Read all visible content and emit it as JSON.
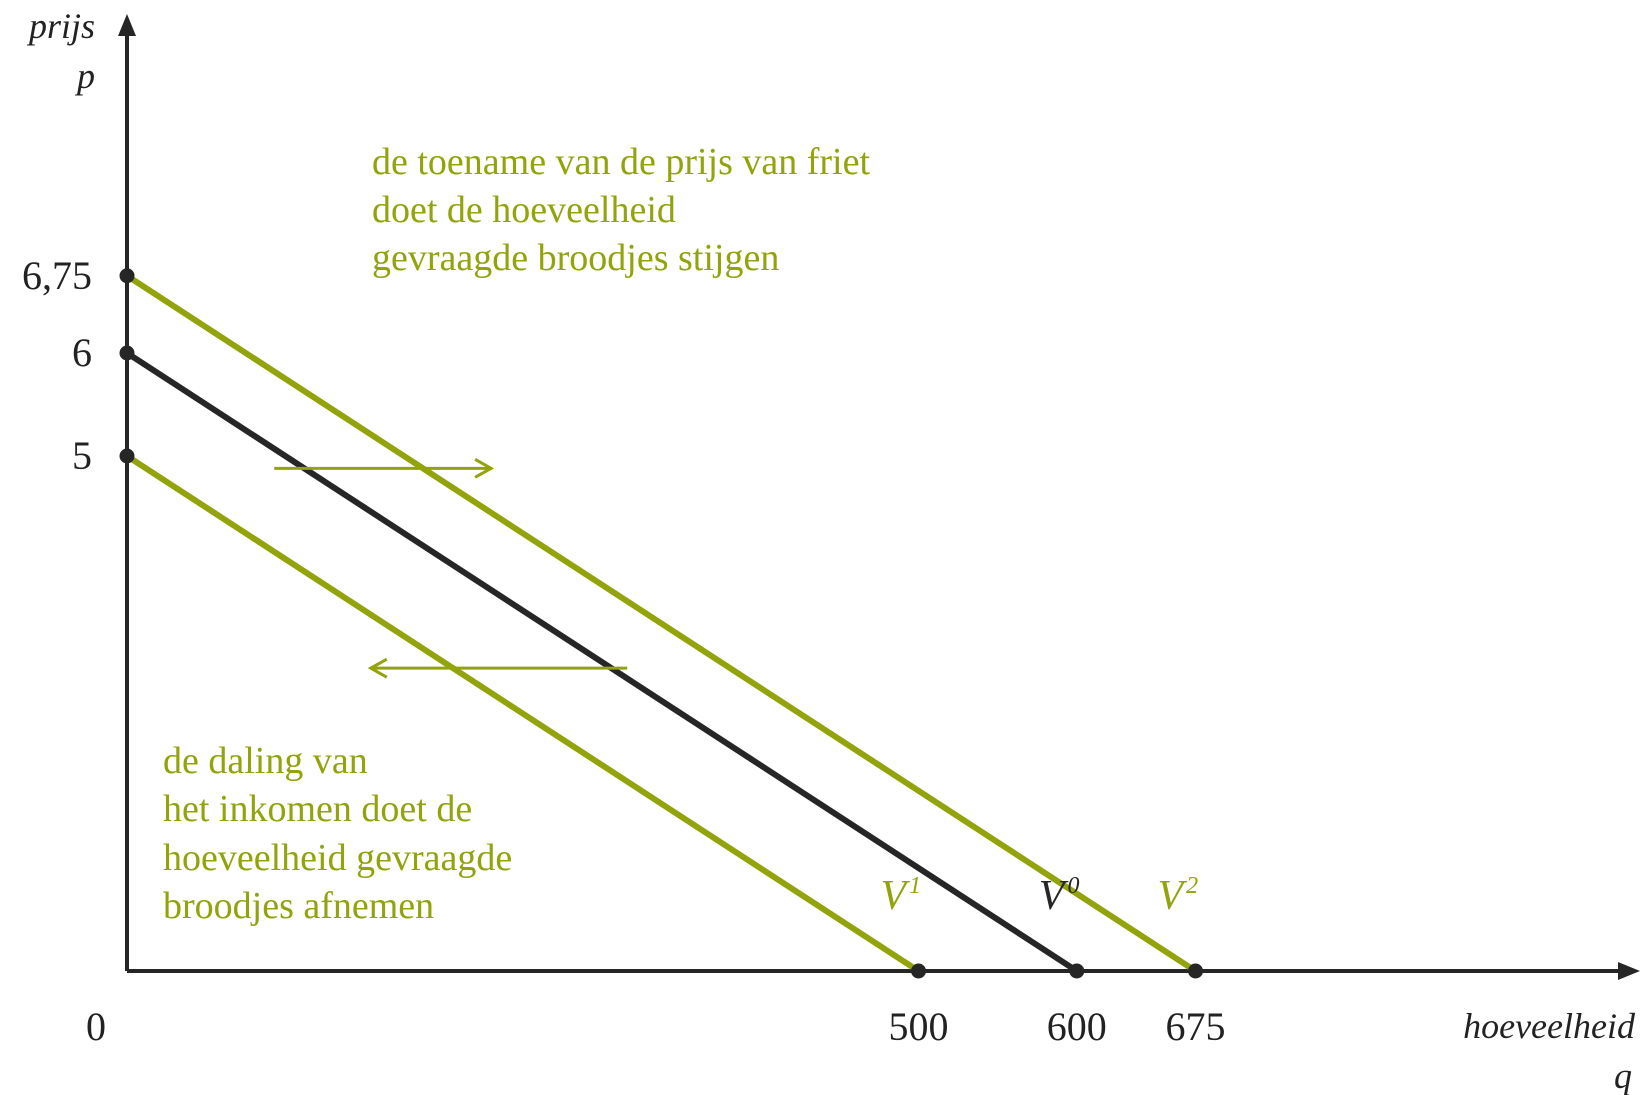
{
  "chart_data": {
    "type": "line",
    "xlabel": [
      "hoeveelheid",
      "q"
    ],
    "ylabel": [
      "prijs",
      "p"
    ],
    "origin_label": "0",
    "x_ticks": [
      "500",
      "600",
      "675"
    ],
    "y_ticks": [
      "6,75",
      "6",
      "5"
    ],
    "xlim": [
      0,
      900
    ],
    "ylim": [
      0,
      7.8
    ],
    "colors": {
      "shift": "#93a30c",
      "base": "#262626",
      "text": "#222222"
    },
    "series": [
      {
        "name": "V",
        "sup": "1",
        "color": "#93a30c",
        "x": [
          0,
          500
        ],
        "y": [
          5,
          0
        ]
      },
      {
        "name": "V",
        "sup": "0",
        "color": "#262626",
        "x": [
          0,
          600
        ],
        "y": [
          6,
          0
        ]
      },
      {
        "name": "V",
        "sup": "2",
        "color": "#93a30c",
        "x": [
          0,
          675
        ],
        "y": [
          6.75,
          0
        ]
      }
    ],
    "annotations": [
      {
        "lines": [
          "de toename van de prijs van friet",
          "doet de hoeveelheid",
          "gevraagde broodjes stijgen"
        ],
        "color": "#93a30c"
      },
      {
        "lines": [
          "de daling van",
          "het inkomen doet de",
          "hoeveelheid gevraagde",
          "broodjes afnemen"
        ],
        "color": "#93a30c"
      }
    ],
    "arrows": [
      {
        "direction": "right",
        "y": 4.88,
        "x_from": 93,
        "x_to": 230,
        "color": "#93a30c"
      },
      {
        "direction": "left",
        "y": 2.94,
        "x_from": 316,
        "x_to": 154,
        "color": "#93a30c"
      }
    ]
  }
}
